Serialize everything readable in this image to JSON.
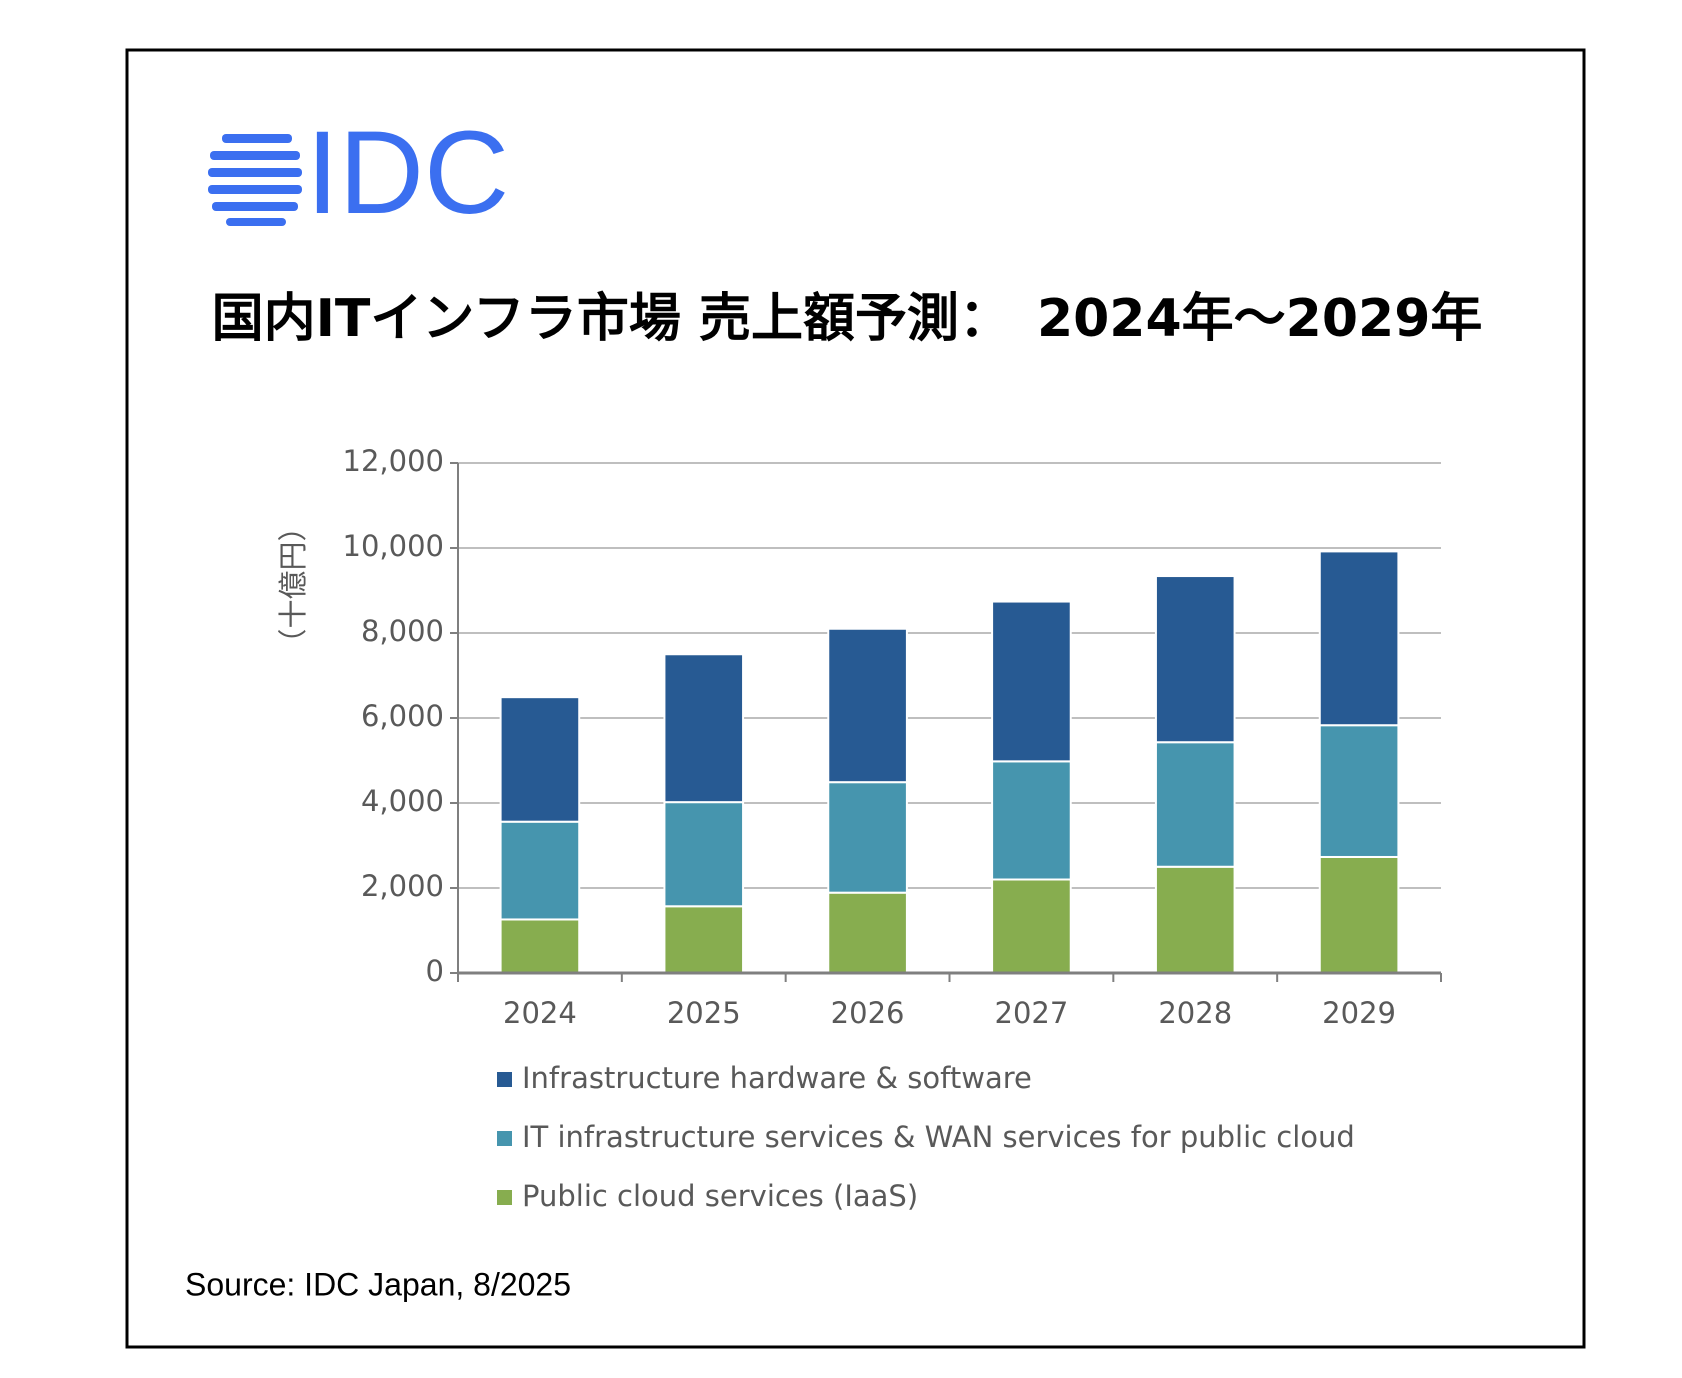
{
  "logo": "IDC",
  "chart_data": {
    "type": "stacked-bar",
    "title": "国内ITインフラ市場 売上額予測：　2024年～2029年",
    "y_axis_label": "（十億円）",
    "source": "Source: IDC Japan, 8/2025",
    "categories": [
      "2024",
      "2025",
      "2026",
      "2027",
      "2028",
      "2029"
    ],
    "series": [
      {
        "name": "Infrastructure hardware & software",
        "color": "#275a93",
        "values": [
          2930,
          3480,
          3610,
          3760,
          3910,
          4090
        ]
      },
      {
        "name": "IT infrastructure services & WAN services for public cloud",
        "color": "#4695ae",
        "values": [
          2300,
          2450,
          2600,
          2780,
          2930,
          3100
        ]
      },
      {
        "name": "Public cloud services (IaaS)",
        "color": "#87ad4f",
        "values": [
          1260,
          1570,
          1890,
          2200,
          2500,
          2730
        ]
      }
    ],
    "ylim": [
      0,
      12000
    ],
    "yticks": [
      0,
      {
        "value": 2000,
        "label": "2,000"
      },
      {
        "value": 4000,
        "label": "4,000"
      },
      {
        "value": 6000,
        "label": "6,000"
      },
      {
        "value": 8000,
        "label": "8,000"
      },
      {
        "value": 10000,
        "label": "10,000"
      },
      {
        "value": 12000,
        "label": "12,000"
      }
    ],
    "grid": true
  }
}
